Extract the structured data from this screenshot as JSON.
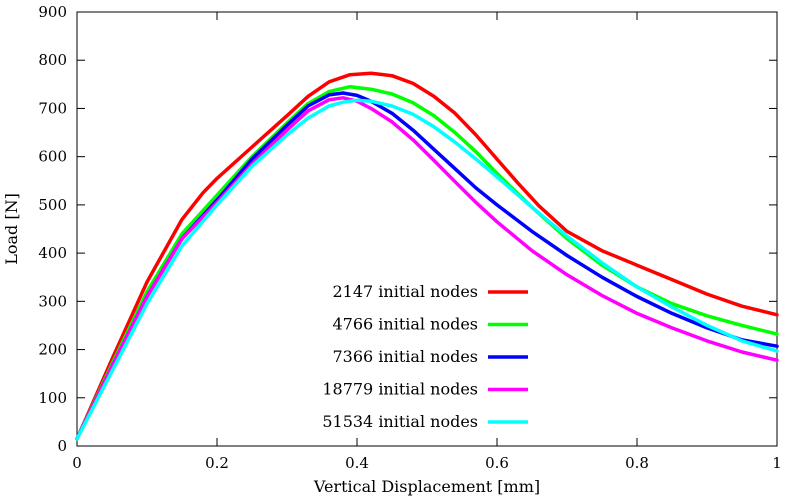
{
  "chart_data": {
    "type": "line",
    "title": "",
    "xlabel": "Vertical Displacement [mm]",
    "ylabel": "Load [N]",
    "xlim": [
      0,
      1
    ],
    "ylim": [
      0,
      900
    ],
    "xticks": [
      0,
      0.2,
      0.4,
      0.6,
      0.8,
      1
    ],
    "xtick_labels": [
      "0",
      "0.2",
      "0.4",
      "0.6",
      "0.8",
      "1"
    ],
    "yticks": [
      0,
      100,
      200,
      300,
      400,
      500,
      600,
      700,
      800,
      900
    ],
    "ytick_labels": [
      "0",
      "100",
      "200",
      "300",
      "400",
      "500",
      "600",
      "700",
      "800",
      "900"
    ],
    "grid": false,
    "legend_position": "bottom-center",
    "series": [
      {
        "name": "2147 initial nodes",
        "color": "#ff0000",
        "x": [
          0,
          0.05,
          0.1,
          0.15,
          0.18,
          0.2,
          0.25,
          0.3,
          0.33,
          0.36,
          0.39,
          0.42,
          0.45,
          0.48,
          0.51,
          0.54,
          0.57,
          0.6,
          0.63,
          0.66,
          0.7,
          0.75,
          0.8,
          0.85,
          0.9,
          0.95,
          1.0
        ],
        "y": [
          15,
          180,
          340,
          470,
          525,
          555,
          620,
          685,
          725,
          755,
          770,
          773,
          768,
          752,
          725,
          690,
          645,
          595,
          545,
          498,
          445,
          405,
          375,
          345,
          315,
          290,
          272
        ]
      },
      {
        "name": "4766 initial nodes",
        "color": "#00ff00",
        "x": [
          0,
          0.05,
          0.1,
          0.15,
          0.2,
          0.25,
          0.3,
          0.33,
          0.36,
          0.39,
          0.42,
          0.45,
          0.48,
          0.51,
          0.54,
          0.57,
          0.6,
          0.65,
          0.7,
          0.75,
          0.8,
          0.85,
          0.9,
          0.95,
          1.0
        ],
        "y": [
          15,
          170,
          320,
          440,
          520,
          600,
          670,
          710,
          735,
          745,
          740,
          730,
          712,
          685,
          650,
          610,
          565,
          495,
          430,
          375,
          330,
          295,
          270,
          250,
          232
        ]
      },
      {
        "name": "7366 initial nodes",
        "color": "#0000ff",
        "x": [
          0,
          0.05,
          0.1,
          0.15,
          0.2,
          0.25,
          0.3,
          0.33,
          0.36,
          0.38,
          0.4,
          0.42,
          0.45,
          0.48,
          0.51,
          0.54,
          0.57,
          0.6,
          0.65,
          0.7,
          0.75,
          0.8,
          0.85,
          0.9,
          0.95,
          1.0
        ],
        "y": [
          15,
          165,
          310,
          430,
          510,
          595,
          665,
          705,
          728,
          732,
          727,
          715,
          690,
          655,
          615,
          575,
          535,
          500,
          445,
          395,
          350,
          310,
          275,
          245,
          220,
          207
        ]
      },
      {
        "name": "18779 initial nodes",
        "color": "#ff00ff",
        "x": [
          0,
          0.05,
          0.1,
          0.15,
          0.2,
          0.25,
          0.3,
          0.33,
          0.36,
          0.38,
          0.4,
          0.42,
          0.45,
          0.48,
          0.51,
          0.54,
          0.57,
          0.6,
          0.65,
          0.7,
          0.75,
          0.8,
          0.85,
          0.9,
          0.95,
          1.0
        ],
        "y": [
          15,
          165,
          310,
          430,
          505,
          585,
          655,
          695,
          718,
          722,
          715,
          700,
          672,
          635,
          592,
          548,
          505,
          465,
          405,
          355,
          312,
          275,
          245,
          218,
          195,
          178
        ]
      },
      {
        "name": "51534 initial nodes",
        "color": "#00ffff",
        "x": [
          0,
          0.05,
          0.1,
          0.15,
          0.2,
          0.25,
          0.3,
          0.33,
          0.36,
          0.38,
          0.4,
          0.42,
          0.45,
          0.48,
          0.51,
          0.54,
          0.57,
          0.6,
          0.65,
          0.7,
          0.75,
          0.8,
          0.85,
          0.9,
          0.95,
          1.0
        ],
        "y": [
          15,
          155,
          295,
          415,
          500,
          580,
          645,
          680,
          705,
          713,
          717,
          715,
          705,
          688,
          662,
          630,
          595,
          558,
          495,
          435,
          380,
          330,
          288,
          250,
          218,
          197
        ]
      }
    ]
  }
}
